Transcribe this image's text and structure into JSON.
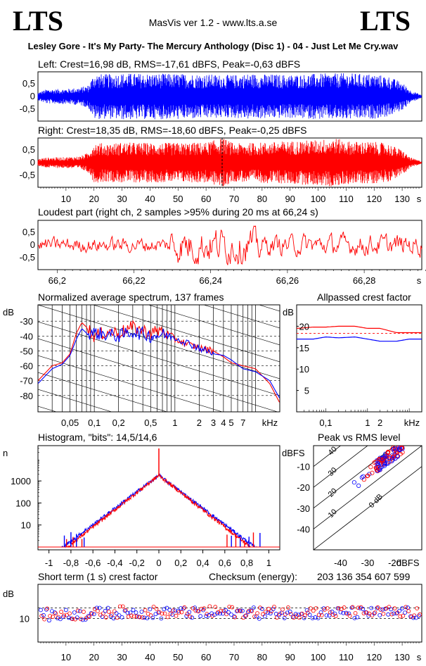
{
  "header": {
    "logo_left": "LTS",
    "logo_right": "LTS",
    "version": "MasVis ver 1.2 - www.lts.a.se",
    "file": "Lesley Gore - It's My Party- The Mercury Anthology (Disc 1) - 04 - Just Let Me Cry.wav"
  },
  "colors": {
    "left": "#0000ff",
    "right": "#ff0000",
    "axis": "#000000"
  },
  "chart_data": [
    {
      "id": "left",
      "type": "area",
      "title": "Left: Crest=16,98 dB, RMS=-17,61 dBFS, Peak=-0,63 dBFS",
      "yticks": [
        "0,5",
        "0",
        "-0,5"
      ],
      "ylim": [
        -1,
        1
      ],
      "xlim": [
        0,
        137
      ],
      "envelope": {
        "t": [
          0,
          3,
          10,
          15,
          18,
          20,
          25,
          30,
          40,
          50,
          60,
          66,
          70,
          75,
          80,
          90,
          100,
          110,
          120,
          125,
          130,
          133,
          137
        ],
        "amp": [
          0.15,
          0.28,
          0.3,
          0.35,
          0.45,
          0.9,
          0.88,
          0.92,
          0.9,
          0.9,
          0.88,
          0.85,
          0.85,
          0.9,
          0.88,
          0.86,
          0.9,
          0.92,
          0.88,
          0.8,
          0.55,
          0.25,
          0.05
        ]
      }
    },
    {
      "id": "right",
      "type": "area",
      "title": "Right: Crest=18,35 dB, RMS=-18,60 dBFS, Peak=-0,25 dBFS",
      "yticks": [
        "0,5",
        "0",
        "-0,5"
      ],
      "ylim": [
        -1,
        1
      ],
      "xlim": [
        0,
        137
      ],
      "xticks": [
        "10",
        "20",
        "30",
        "40",
        "50",
        "60",
        "70",
        "80",
        "90",
        "100",
        "110",
        "120",
        "130"
      ],
      "xunit": "s",
      "envelope": {
        "t": [
          0,
          3,
          10,
          15,
          18,
          20,
          25,
          30,
          40,
          50,
          60,
          66,
          70,
          75,
          80,
          90,
          100,
          106,
          110,
          120,
          125,
          130,
          133,
          137
        ],
        "amp": [
          0.15,
          0.2,
          0.22,
          0.25,
          0.4,
          0.8,
          0.75,
          0.8,
          0.78,
          0.78,
          0.8,
          0.98,
          0.75,
          0.78,
          0.8,
          0.85,
          0.9,
          0.98,
          0.85,
          0.82,
          0.75,
          0.5,
          0.2,
          0.05
        ]
      }
    },
    {
      "id": "loudest",
      "type": "line",
      "title": "Loudest part (right ch, 2 samples >95% during 20 ms at 66,24 s)",
      "yticks": [
        "0,5",
        "0",
        "-0,5"
      ],
      "ylim": [
        -1,
        1
      ],
      "xlim": [
        66.195,
        66.295
      ],
      "xticks": [
        "66,2",
        "66,22",
        "66,24",
        "66,26",
        "66,28"
      ],
      "xunit": "s"
    },
    {
      "id": "spectrum",
      "type": "line",
      "title": "Normalized average spectrum, 137 frames",
      "ylabel": "dB",
      "yticks": [
        "-30",
        "-40",
        "-50",
        "-60",
        "-70",
        "-80"
      ],
      "ylim": [
        -91,
        -19
      ],
      "xticks": [
        "0,05",
        "0,1",
        "0,2",
        "0,5",
        "1",
        "2",
        "3",
        "4",
        "5",
        "7",
        "kHz"
      ],
      "freq_khz": [
        0.02,
        0.03,
        0.04,
        0.05,
        0.06,
        0.07,
        0.08,
        0.1,
        0.15,
        0.2,
        0.3,
        0.5,
        0.7,
        1,
        1.5,
        2,
        3,
        4,
        5,
        7,
        10,
        15,
        20
      ],
      "series": [
        {
          "name": "",
          "values": [
            -70,
            -60,
            -58,
            -52,
            -38,
            -31,
            -34,
            -40,
            -37,
            -38,
            -34,
            -38,
            -36,
            -42,
            -46,
            -48,
            -50,
            -54,
            -58,
            -60,
            -62,
            -72,
            -85
          ]
        },
        {
          "name": "",
          "values": [
            -72,
            -62,
            -59,
            -53,
            -42,
            -35,
            -38,
            -38,
            -39,
            -40,
            -37,
            -40,
            -39,
            -41,
            -45,
            -48,
            -52,
            -53,
            -56,
            -62,
            -64,
            -70,
            -82
          ]
        }
      ]
    },
    {
      "id": "allpass",
      "type": "line",
      "title": "Allpassed crest factor",
      "ylabel": "dB",
      "yticks": [
        "20",
        "15",
        "10",
        "5"
      ],
      "ylim": [
        0,
        25
      ],
      "xticks": [
        "0,1",
        "1",
        "2",
        "kHz"
      ],
      "freq_khz": [
        0.02,
        0.05,
        0.1,
        0.2,
        0.5,
        1,
        2,
        5,
        10,
        20
      ],
      "series": [
        {
          "name": "",
          "values": [
            17,
            17,
            17.5,
            17.3,
            17.5,
            17,
            16.5,
            16.5,
            17,
            17
          ]
        },
        {
          "name": "",
          "values": [
            19.5,
            19.8,
            19.8,
            20,
            20,
            19.5,
            19.5,
            18.5,
            18.5,
            18.5
          ]
        }
      ],
      "reference_db": 18.35
    },
    {
      "id": "histogram",
      "type": "line",
      "title": "Histogram, \"bits\": 14,5/14,6",
      "ylabel": "n",
      "yticks": [
        "1000",
        "100",
        "10"
      ],
      "ylim": [
        1,
        40000
      ],
      "xlim": [
        -1.1,
        1.1
      ],
      "xticks": [
        "-1",
        "-0,8",
        "-0,6",
        "-0,4",
        "-0,2",
        "0",
        "0,2",
        "0,4",
        "0,6",
        "0,8",
        "1"
      ],
      "peak_count": 1800
    },
    {
      "id": "peakrms",
      "type": "scatter",
      "title": "Peak vs RMS level",
      "ylabel": "dBFS",
      "xlabel": "dBFS",
      "yticks": [
        "-10",
        "-20",
        "-30",
        "-40"
      ],
      "xticks": [
        "-40",
        "-30",
        "-20"
      ],
      "xlim": [
        -50,
        -10
      ],
      "ylim": [
        -50,
        0
      ],
      "diag_labels": [
        "40",
        "30",
        "20",
        "10",
        "0 dB"
      ]
    },
    {
      "id": "shortcrest",
      "type": "scatter",
      "title": "Short term (1 s) crest factor",
      "checksum_label": "Checksum (energy):",
      "checksum": "203 136 354 607 599",
      "ylabel": "dB",
      "yticks": [
        "10"
      ],
      "ylim": [
        0,
        25
      ],
      "xlim": [
        0,
        137
      ],
      "xticks": [
        "10",
        "20",
        "30",
        "40",
        "50",
        "60",
        "70",
        "80",
        "90",
        "100",
        "110",
        "120",
        "130"
      ],
      "xunit": "s"
    }
  ]
}
